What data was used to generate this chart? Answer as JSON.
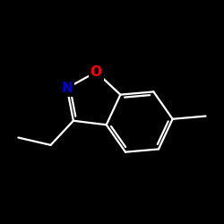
{
  "background_color": "#000000",
  "line_color": "#ffffff",
  "O_color": "#ff0000",
  "N_color": "#0000cc",
  "font_size": 11,
  "lw": 1.6,
  "dbo": 0.09,
  "shrink": 0.12
}
